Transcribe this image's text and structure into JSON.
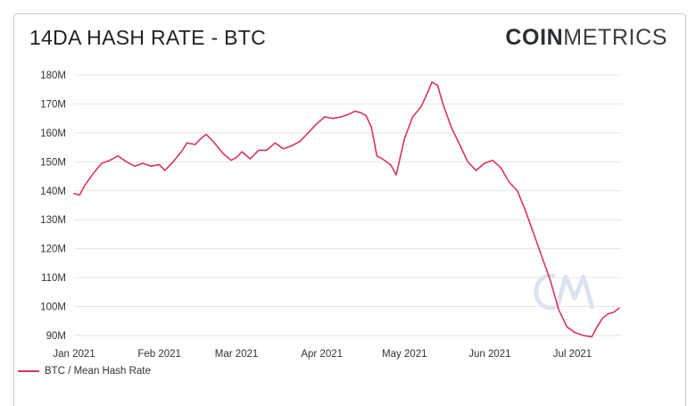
{
  "header": {
    "title": "14DA HASH RATE - BTC",
    "brand_strong": "COIN",
    "brand_light": "METRICS"
  },
  "colors": {
    "series": "#d8345f",
    "grid": "#e6e6e6",
    "watermark": "#dde3ee"
  },
  "chart_data": {
    "type": "line",
    "title": "14DA HASH RATE - BTC",
    "xlabel": "",
    "ylabel": "",
    "ylim": [
      85,
      185
    ],
    "y_ticks": [
      90,
      100,
      110,
      120,
      130,
      140,
      150,
      160,
      170,
      180
    ],
    "y_tick_labels": [
      "90M",
      "100M",
      "110M",
      "120M",
      "130M",
      "140M",
      "150M",
      "160M",
      "170M",
      "180M"
    ],
    "x_ticks": [
      "Jan 2021",
      "Feb 2021",
      "Mar 2021",
      "Apr 2021",
      "May 2021",
      "Jun 2021",
      "Jul 2021"
    ],
    "x_tick_dates": [
      "2021-01-01",
      "2021-02-01",
      "2021-03-01",
      "2021-04-01",
      "2021-05-01",
      "2021-06-01",
      "2021-07-01"
    ],
    "grid": true,
    "legend_position": "bottom-left",
    "series": [
      {
        "name": "BTC / Mean Hash Rate",
        "x": [
          "2021-01-01",
          "2021-01-03",
          "2021-01-05",
          "2021-01-08",
          "2021-01-11",
          "2021-01-14",
          "2021-01-17",
          "2021-01-20",
          "2021-01-23",
          "2021-01-26",
          "2021-01-29",
          "2021-02-01",
          "2021-02-03",
          "2021-02-06",
          "2021-02-09",
          "2021-02-11",
          "2021-02-14",
          "2021-02-16",
          "2021-02-18",
          "2021-02-21",
          "2021-02-24",
          "2021-02-27",
          "2021-03-01",
          "2021-03-03",
          "2021-03-06",
          "2021-03-09",
          "2021-03-12",
          "2021-03-15",
          "2021-03-18",
          "2021-03-21",
          "2021-03-24",
          "2021-03-27",
          "2021-03-30",
          "2021-04-02",
          "2021-04-05",
          "2021-04-08",
          "2021-04-11",
          "2021-04-13",
          "2021-04-15",
          "2021-04-17",
          "2021-04-19",
          "2021-04-21",
          "2021-04-23",
          "2021-04-26",
          "2021-04-28",
          "2021-05-01",
          "2021-05-04",
          "2021-05-07",
          "2021-05-09",
          "2021-05-11",
          "2021-05-13",
          "2021-05-15",
          "2021-05-18",
          "2021-05-21",
          "2021-05-24",
          "2021-05-27",
          "2021-05-30",
          "2021-06-02",
          "2021-06-05",
          "2021-06-08",
          "2021-06-11",
          "2021-06-14",
          "2021-06-17",
          "2021-06-20",
          "2021-06-23",
          "2021-06-26",
          "2021-06-29",
          "2021-07-02",
          "2021-07-05",
          "2021-07-08",
          "2021-07-10",
          "2021-07-12",
          "2021-07-14",
          "2021-07-16",
          "2021-07-18"
        ],
        "y": [
          139,
          138.5,
          142,
          146,
          149.5,
          150.5,
          152,
          150,
          148.5,
          149.5,
          148.5,
          149,
          147,
          150,
          153.5,
          156.5,
          156,
          158,
          159.5,
          156.5,
          153,
          150.5,
          151.5,
          153.5,
          151,
          154,
          154,
          156.5,
          154.5,
          155.5,
          157,
          160,
          163,
          165.5,
          165,
          165.5,
          166.5,
          167.5,
          167,
          166,
          162,
          152,
          151,
          149,
          145.5,
          158,
          165.5,
          169,
          173,
          177.5,
          176.5,
          170,
          162,
          156,
          150,
          147,
          149.5,
          150.5,
          148,
          143,
          140,
          133,
          125,
          117,
          109,
          99,
          93,
          91,
          90,
          89.5,
          93,
          96,
          97.5,
          98,
          99.5
        ]
      }
    ]
  }
}
